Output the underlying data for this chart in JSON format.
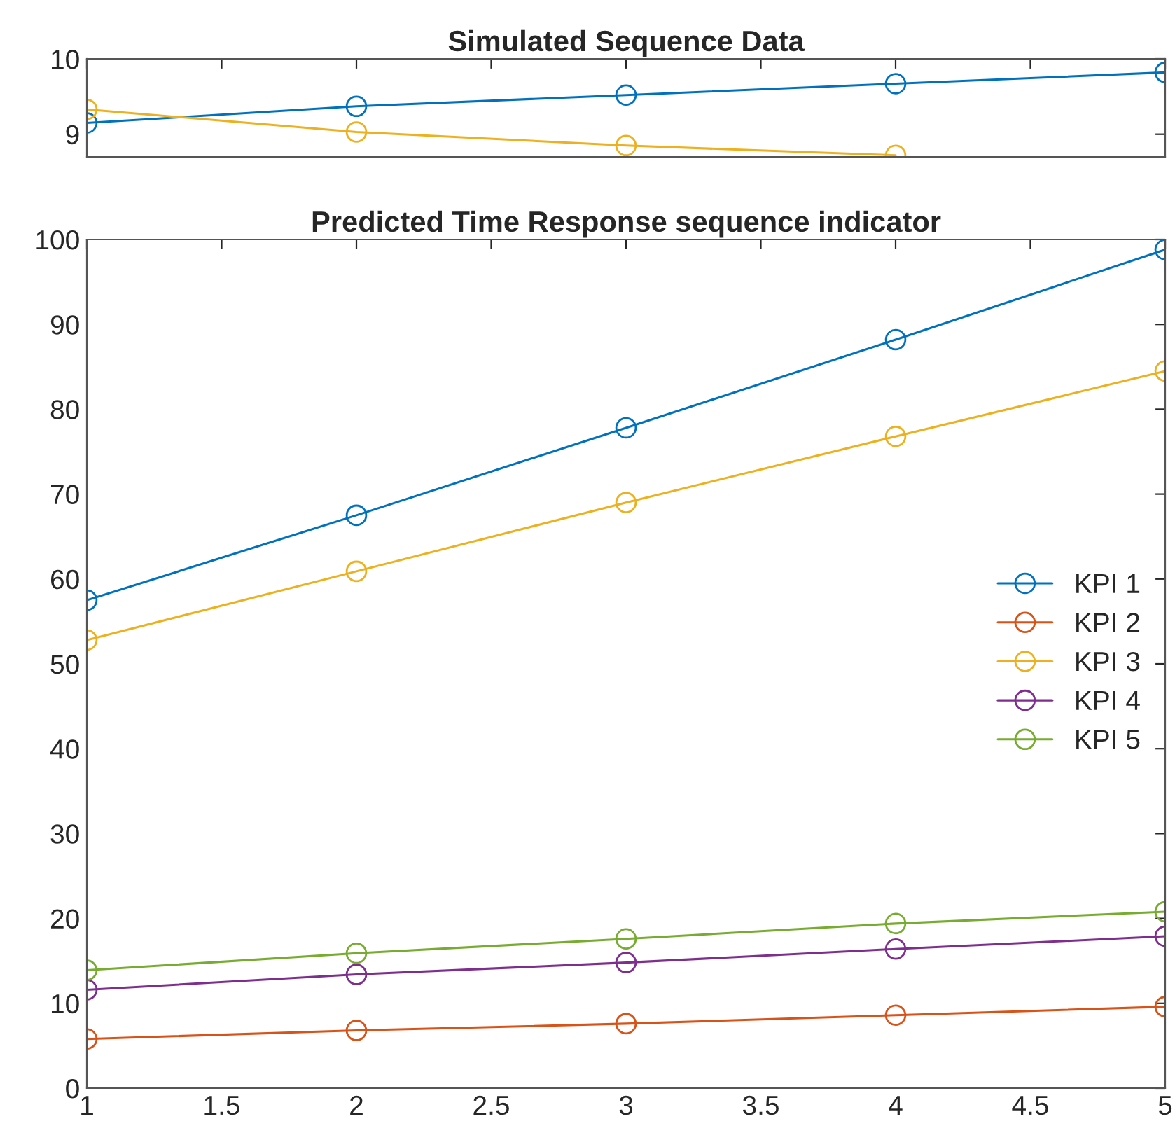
{
  "chart_data": [
    {
      "type": "line",
      "title": "Simulated Sequence Data",
      "x": [
        1,
        2,
        3,
        4,
        5
      ],
      "xlim": [
        1,
        5
      ],
      "ylim": [
        8.7,
        10
      ],
      "yticks": [
        9,
        10
      ],
      "xticks": [
        {
          "value": 1,
          "label": null
        },
        {
          "value": 1.5,
          "label": null
        },
        {
          "value": 2,
          "label": null
        },
        {
          "value": 2.5,
          "label": null
        },
        {
          "value": 3,
          "label": null
        },
        {
          "value": 3.5,
          "label": null
        },
        {
          "value": 4,
          "label": null
        },
        {
          "value": 4.5,
          "label": null
        },
        {
          "value": 5,
          "label": null
        }
      ],
      "tick_labels": "y",
      "marker": "circle",
      "grid": false,
      "legend": false,
      "series": [
        {
          "color": "#0072bd",
          "values": [
            9.15,
            9.37,
            9.52,
            9.67,
            9.82
          ]
        },
        {
          "color": "#edb120",
          "values": [
            9.33,
            9.03,
            8.85,
            8.72,
            null
          ]
        }
      ]
    },
    {
      "type": "line",
      "title": "Predicted Time Response sequence indicator",
      "x": [
        1,
        2,
        3,
        4,
        5
      ],
      "xlim": [
        1,
        5
      ],
      "ylim": [
        0,
        100
      ],
      "xticks": [
        1,
        1.5,
        2,
        2.5,
        3,
        3.5,
        4,
        4.5,
        5
      ],
      "yticks": [
        0,
        10,
        20,
        30,
        40,
        50,
        60,
        70,
        80,
        90,
        100
      ],
      "marker": "circle",
      "grid": false,
      "legend": "right",
      "series": [
        {
          "name": "KPI 1",
          "color": "#0072bd",
          "values": [
            57.5,
            67.5,
            77.8,
            88.2,
            98.8
          ]
        },
        {
          "name": "KPI 2",
          "color": "#d95319",
          "values": [
            5.8,
            6.8,
            7.6,
            8.6,
            9.6
          ]
        },
        {
          "name": "KPI 3",
          "color": "#edb120",
          "values": [
            52.8,
            60.9,
            69.0,
            76.8,
            84.5
          ]
        },
        {
          "name": "KPI 4",
          "color": "#7e2f8e",
          "values": [
            11.6,
            13.4,
            14.8,
            16.4,
            17.9
          ]
        },
        {
          "name": "KPI 5",
          "color": "#77ac30",
          "values": [
            13.9,
            15.9,
            17.6,
            19.4,
            20.8
          ]
        }
      ]
    }
  ]
}
